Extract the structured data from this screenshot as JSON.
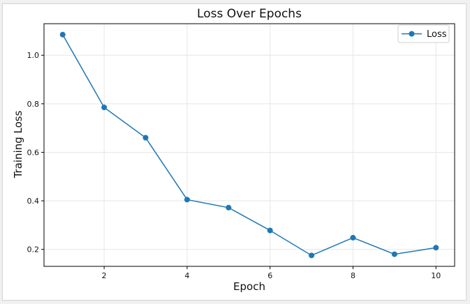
{
  "chart_data": {
    "type": "line",
    "title": "Loss Over Epochs",
    "xlabel": "Epoch",
    "ylabel": "Training Loss",
    "x": [
      1,
      2,
      3,
      4,
      5,
      6,
      7,
      8,
      9,
      10
    ],
    "series": [
      {
        "name": "Loss",
        "values": [
          1.085,
          0.785,
          0.66,
          0.405,
          0.372,
          0.278,
          0.175,
          0.248,
          0.18,
          0.207
        ]
      }
    ],
    "xlim": [
      0.55,
      10.45
    ],
    "ylim": [
      0.13,
      1.13
    ],
    "x_ticks": [
      2,
      4,
      6,
      8,
      10
    ],
    "y_ticks": [
      0.2,
      0.4,
      0.6,
      0.8,
      1.0
    ],
    "x_tick_labels": [
      "2",
      "4",
      "6",
      "8",
      "10"
    ],
    "y_tick_labels": [
      "0.2",
      "0.4",
      "0.6",
      "0.8",
      "1.0"
    ],
    "grid": true,
    "legend_position": "top-right",
    "colors": {
      "series": "#1f77b4",
      "grid": "#e6e6e6",
      "axis": "#000000"
    }
  }
}
